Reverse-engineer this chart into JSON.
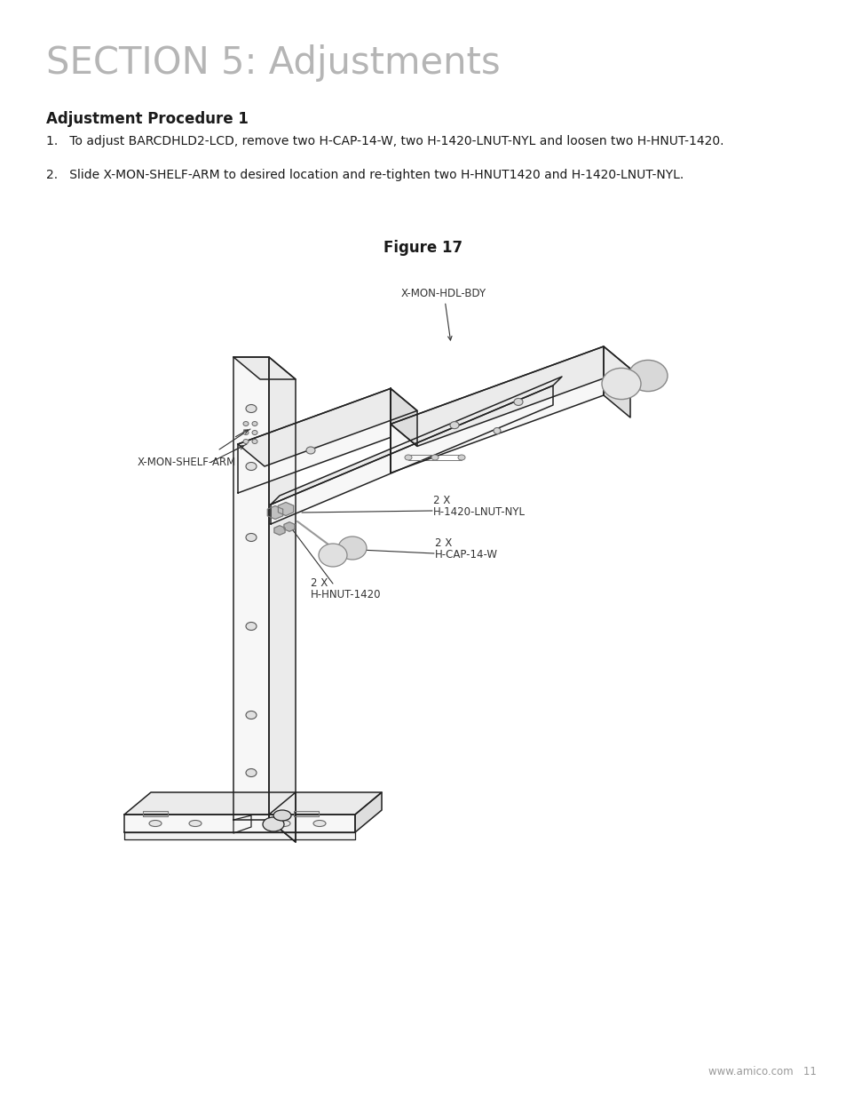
{
  "bg_color": "#ffffff",
  "section_title": "SECTION 5: Adjustments",
  "section_title_color": "#b5b5b5",
  "section_title_fontsize": 30,
  "proc_title": "Adjustment Procedure 1",
  "proc_title_fontsize": 12,
  "step1": "1.   To adjust BARCDHLD2-LCD, remove two H-CAP-14-W, two H-1420-LNUT-NYL and loosen two H-HNUT-1420.",
  "step2": "2.   Slide X-MON-SHELF-ARM to desired location and re-tighten two H-HNUT1420 and H-1420-LNUT-NYL.",
  "fig_title": "Figure 17",
  "footer_text": "www.amico.com   11",
  "text_color": "#1a1a1a",
  "footer_color": "#999999",
  "body_fontsize": 10,
  "fig_title_fontsize": 12,
  "line_color": "#222222",
  "fill_light": "#f7f7f7",
  "fill_mid": "#ebebeb",
  "fill_dark": "#dedede"
}
